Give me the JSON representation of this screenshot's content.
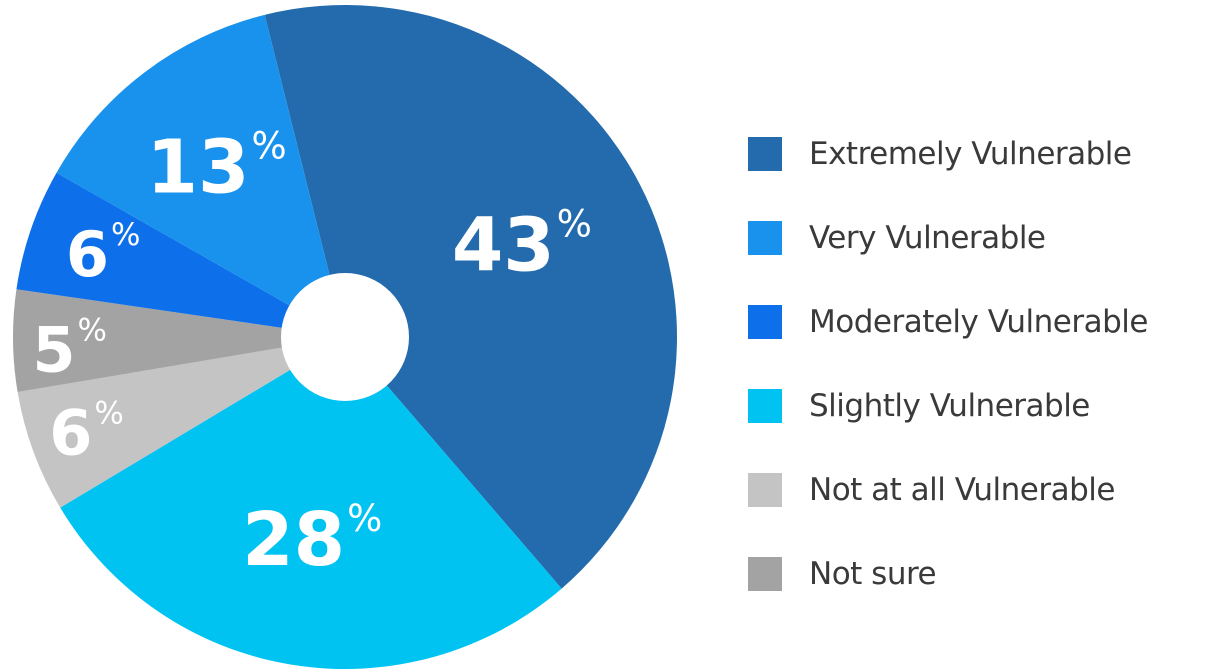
{
  "chart_data": {
    "type": "pie",
    "title": "",
    "unit": "%",
    "legend_position": "right",
    "donut_hole": true,
    "slices": [
      {
        "label": "Extremely Vulnerable",
        "value": 43,
        "color": "#236bac"
      },
      {
        "label": "Slightly Vulnerable",
        "value": 28,
        "color": "#00c3f2"
      },
      {
        "label": "Not at all Vulnerable",
        "value": 6,
        "color": "#c4c4c4"
      },
      {
        "label": "Not sure",
        "value": 5,
        "color": "#a3a3a3"
      },
      {
        "label": "Moderately Vulnerable",
        "value": 6,
        "color": "#0d6fea"
      },
      {
        "label": "Very Vulnerable",
        "value": 13,
        "color": "#1992ee"
      }
    ],
    "legend_order": [
      "Extremely Vulnerable",
      "Very Vulnerable",
      "Moderately Vulnerable",
      "Slightly Vulnerable",
      "Not at all Vulnerable",
      "Not sure"
    ]
  }
}
